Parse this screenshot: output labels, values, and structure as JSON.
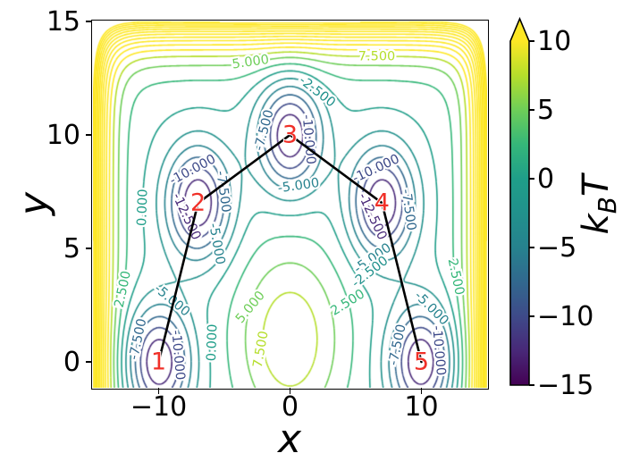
{
  "axes": {
    "xlabel": "x",
    "ylabel": "y",
    "xlim": [
      -15,
      15
    ],
    "ylim": [
      -1.14,
      15
    ],
    "xticks": [
      {
        "value": -10,
        "label": "−10"
      },
      {
        "value": 0,
        "label": "0"
      },
      {
        "value": 10,
        "label": "10"
      }
    ],
    "yticks": [
      {
        "value": 0,
        "label": "0"
      },
      {
        "value": 5,
        "label": "5"
      },
      {
        "value": 10,
        "label": "10"
      },
      {
        "value": 15,
        "label": "15"
      }
    ]
  },
  "colorbar": {
    "label_parts": {
      "main": "k",
      "sub": "B",
      "end": "T"
    },
    "vmin": -15,
    "vmax": 10,
    "extend": "max",
    "colormap": "viridis",
    "colormap_stops": [
      "#440154",
      "#482878",
      "#3e4a89",
      "#31688e",
      "#26828e",
      "#21918c",
      "#1f9e89",
      "#35b779",
      "#6ece58",
      "#b5de2b",
      "#fde725"
    ],
    "ticks": [
      {
        "value": 10,
        "label": "10"
      },
      {
        "value": 5,
        "label": "5"
      },
      {
        "value": 0,
        "label": "0"
      },
      {
        "value": -5,
        "label": "−5"
      },
      {
        "value": -10,
        "label": "−10"
      },
      {
        "value": -15,
        "label": "−15"
      }
    ]
  },
  "chart_data": {
    "type": "contour",
    "title": "",
    "xlabel": "x",
    "ylabel": "y",
    "colorbar_label": "kBT",
    "xlim": [
      -15,
      15
    ],
    "ylim": [
      -1.14,
      15
    ],
    "level_step": 2.5,
    "levels": [
      -12.5,
      -10,
      -7.5,
      -5,
      -2.5,
      0,
      2.5,
      5,
      7.5,
      10,
      12.5,
      15,
      17.5,
      20,
      22.5,
      25,
      27.5,
      30,
      32.5,
      35
    ],
    "surface": {
      "well_depth": -15,
      "well_2sigma2": 6.0,
      "hill_amp": 9.5,
      "hill_center": [
        0,
        1
      ],
      "hill_2sigma2": 18.0,
      "wall_amp": 35,
      "wall_scale": 1.0,
      "wall_x": [
        -15,
        15
      ],
      "wall_y_top": 15
    },
    "minima": [
      {
        "label": "1",
        "x": -10,
        "y": 0
      },
      {
        "label": "2",
        "x": -7,
        "y": 7
      },
      {
        "label": "3",
        "x": 0,
        "y": 10
      },
      {
        "label": "4",
        "x": 7,
        "y": 7
      },
      {
        "label": "5",
        "x": 10,
        "y": 0
      }
    ],
    "minima_color": "#f03028",
    "path_color": "#000000",
    "path": [
      [
        -10,
        0
      ],
      [
        -7,
        7
      ],
      [
        0,
        10
      ],
      [
        7,
        7
      ],
      [
        10,
        0
      ]
    ],
    "contour_labels": [
      {
        "text": "5.000",
        "x": -3.0,
        "y": 13.2,
        "rot": -8
      },
      {
        "text": "7.500",
        "x": 6.6,
        "y": 13.45,
        "rot": 0
      },
      {
        "text": "-2.500",
        "x": 2.05,
        "y": 11.9,
        "rot": 38
      },
      {
        "text": "-7.500",
        "x": -1.95,
        "y": 10.2,
        "rot": -75
      },
      {
        "text": "-10.000",
        "x": 1.4,
        "y": 9.8,
        "rot": 85
      },
      {
        "text": "-5.000",
        "x": 0.65,
        "y": 7.75,
        "rot": -8
      },
      {
        "text": "-10.000",
        "x": -7.4,
        "y": 8.45,
        "rot": -28
      },
      {
        "text": "-7.500",
        "x": -5.1,
        "y": 7.5,
        "rot": 82
      },
      {
        "text": "-12.500",
        "x": -7.9,
        "y": 6.4,
        "rot": 65
      },
      {
        "text": "0.000",
        "x": -11.2,
        "y": 6.8,
        "rot": -88
      },
      {
        "text": "-5.000",
        "x": -5.6,
        "y": 5.2,
        "rot": 80
      },
      {
        "text": "2.500",
        "x": -12.7,
        "y": 3.2,
        "rot": -78
      },
      {
        "text": "-5.000",
        "x": -9.0,
        "y": 2.7,
        "rot": 40
      },
      {
        "text": "5.000",
        "x": -3.0,
        "y": 2.4,
        "rot": -50
      },
      {
        "text": "-7.500",
        "x": -11.55,
        "y": 1.0,
        "rot": -78
      },
      {
        "text": "-10.000",
        "x": -8.55,
        "y": 0.3,
        "rot": 85
      },
      {
        "text": "0.000",
        "x": -5.9,
        "y": 0.85,
        "rot": -88
      },
      {
        "text": "7.500",
        "x": -2.2,
        "y": 0.55,
        "rot": -80
      },
      {
        "text": "-10.000",
        "x": 6.55,
        "y": 8.5,
        "rot": -25
      },
      {
        "text": "-12.500",
        "x": 6.25,
        "y": 6.4,
        "rot": 65
      },
      {
        "text": "-7.500",
        "x": 9.0,
        "y": 6.7,
        "rot": 82
      },
      {
        "text": "-5.000",
        "x": 6.3,
        "y": 4.55,
        "rot": -35
      },
      {
        "text": "-2.500",
        "x": 6.1,
        "y": 3.95,
        "rot": -38
      },
      {
        "text": "2.500",
        "x": 4.4,
        "y": 2.6,
        "rot": -32
      },
      {
        "text": "-5.000",
        "x": 10.75,
        "y": 2.35,
        "rot": 45
      },
      {
        "text": "-7.500",
        "x": 8.2,
        "y": 0.75,
        "rot": -78
      },
      {
        "text": "-10.000",
        "x": 11.3,
        "y": 0.5,
        "rot": 85
      },
      {
        "text": "2.500",
        "x": 12.6,
        "y": 3.75,
        "rot": 78
      }
    ]
  }
}
